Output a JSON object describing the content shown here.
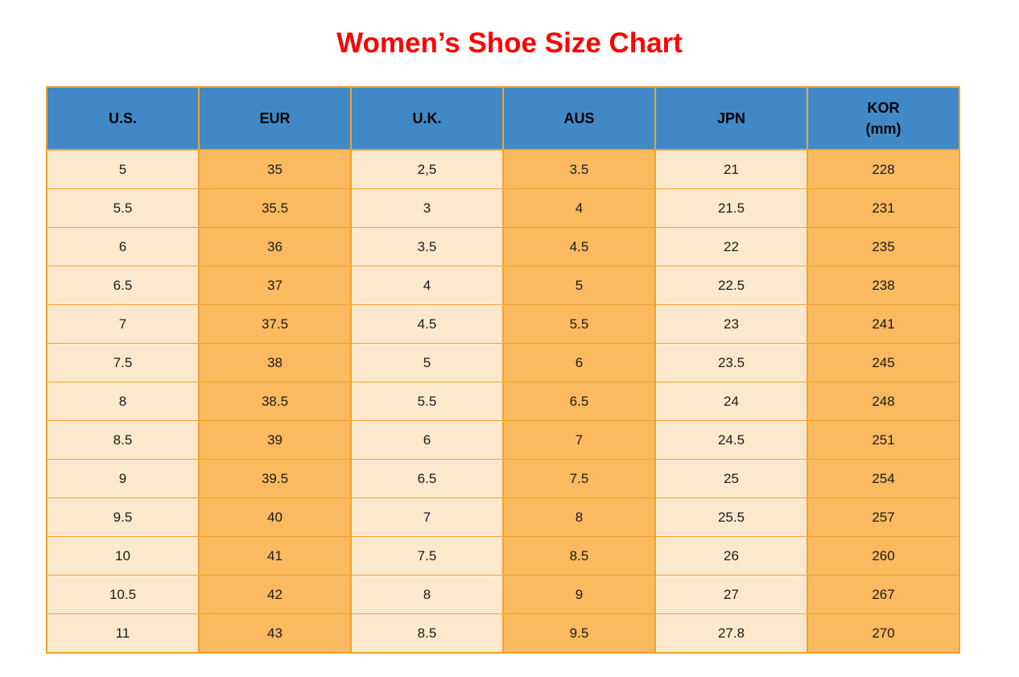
{
  "title": "Women’s Shoe Size Chart",
  "colors": {
    "title_red": "#ff0000",
    "header_blue": "#4189c6",
    "cell_light": "#fce9cd",
    "cell_orange": "#fbba5f",
    "grid_border": "#f2a130",
    "text": "#1a1a1a"
  },
  "chart_data": {
    "type": "table",
    "title": "Women’s Shoe Size Chart",
    "columns": [
      "U.S.",
      "EUR",
      "U.K.",
      "AUS",
      "JPN",
      "KOR\n(mm)"
    ],
    "rows": [
      [
        "5",
        "35",
        "2,5",
        "3.5",
        "21",
        "228"
      ],
      [
        "5.5",
        "35.5",
        "3",
        "4",
        "21.5",
        "231"
      ],
      [
        "6",
        "36",
        "3.5",
        "4.5",
        "22",
        "235"
      ],
      [
        "6.5",
        "37",
        "4",
        "5",
        "22.5",
        "238"
      ],
      [
        "7",
        "37.5",
        "4.5",
        "5.5",
        "23",
        "241"
      ],
      [
        "7.5",
        "38",
        "5",
        "6",
        "23.5",
        "245"
      ],
      [
        "8",
        "38.5",
        "5.5",
        "6.5",
        "24",
        "248"
      ],
      [
        "8.5",
        "39",
        "6",
        "7",
        "24.5",
        "251"
      ],
      [
        "9",
        "39.5",
        "6.5",
        "7.5",
        "25",
        "254"
      ],
      [
        "9.5",
        "40",
        "7",
        "8",
        "25.5",
        "257"
      ],
      [
        "10",
        "41",
        "7.5",
        "8.5",
        "26",
        "260"
      ],
      [
        "10.5",
        "42",
        "8",
        "9",
        "27",
        "267"
      ],
      [
        "11",
        "43",
        "8.5",
        "9.5",
        "27.8",
        "270"
      ]
    ],
    "layout_hints": {
      "column_background_pattern": [
        "light",
        "orange",
        "light",
        "orange",
        "light",
        "orange"
      ],
      "header_style": "blue background, bold black text",
      "grid": "orange borders"
    }
  }
}
